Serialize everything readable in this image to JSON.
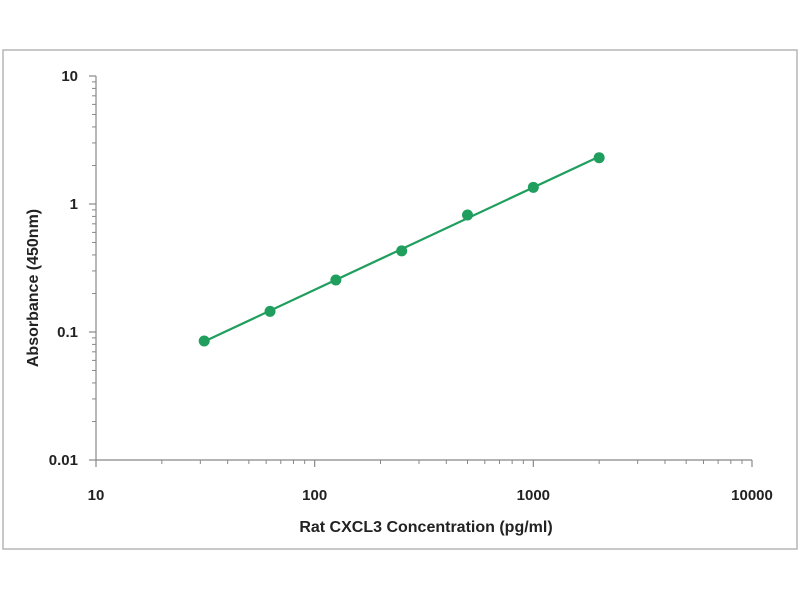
{
  "chart_data": {
    "type": "scatter",
    "title": "",
    "xlabel": "Rat CXCL3 Concentration (pg/ml)",
    "ylabel": "Absorbance (450nm)",
    "xscale": "log",
    "yscale": "log",
    "xlim": [
      10,
      10000
    ],
    "ylim": [
      0.01,
      10
    ],
    "x_ticks": [
      "10",
      "100",
      "1000",
      "10000"
    ],
    "y_ticks": [
      "10",
      "1",
      "0.1",
      "0.01"
    ],
    "grid": false,
    "legend": "none",
    "series": [
      {
        "x": [
          31.25,
          62.5,
          125,
          250,
          500,
          1000,
          2000
        ],
        "y": [
          0.085,
          0.145,
          0.255,
          0.43,
          0.82,
          1.35,
          2.3
        ],
        "color": "#1f9e5e",
        "marker": "circle",
        "fit_line": true
      }
    ]
  }
}
